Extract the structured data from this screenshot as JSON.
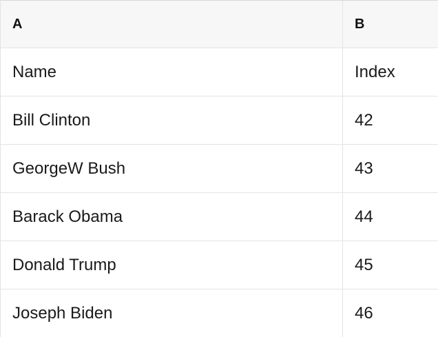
{
  "table": {
    "columns": [
      {
        "label": "A"
      },
      {
        "label": "B"
      }
    ],
    "rows": [
      {
        "a": "Name",
        "b": "Index"
      },
      {
        "a": "Bill Clinton",
        "b": "42"
      },
      {
        "a": "GeorgeW Bush",
        "b": "43"
      },
      {
        "a": "Barack Obama",
        "b": "44"
      },
      {
        "a": "Donald Trump",
        "b": "45"
      },
      {
        "a": "Joseph Biden",
        "b": "46"
      }
    ]
  },
  "colors": {
    "header_bg": "#f7f7f7",
    "row_bg": "#ffffff",
    "grid_border": "#e4e4e4",
    "outer_top_border": "#d6d6d6",
    "text": "#1a1a1a"
  }
}
